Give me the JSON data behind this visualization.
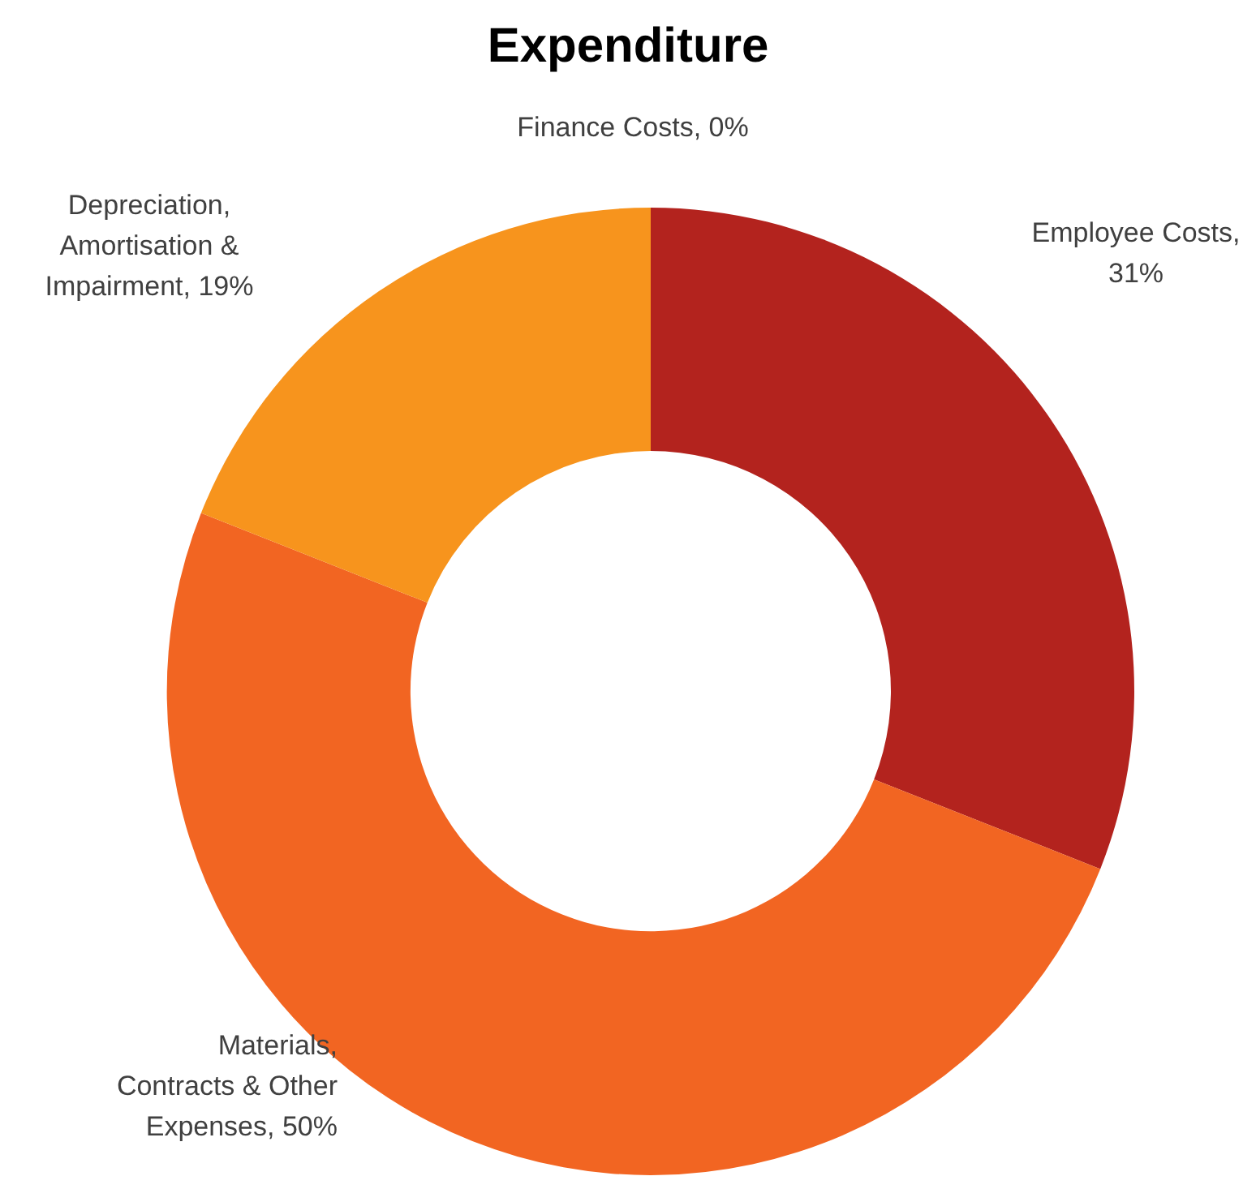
{
  "chart_data": {
    "type": "donut",
    "title": "Expenditure",
    "categories": [
      "Employee Costs, 31%",
      "Materials, Contracts & Other Expenses, 50%",
      "Depreciation, Amortisation & Impairment, 19%",
      "Finance Costs, 0%"
    ],
    "values": [
      31,
      50,
      19,
      0
    ],
    "colors": [
      "#b3231e",
      "#f26522",
      "#f7941d",
      "#f9a825"
    ],
    "legend": false
  }
}
